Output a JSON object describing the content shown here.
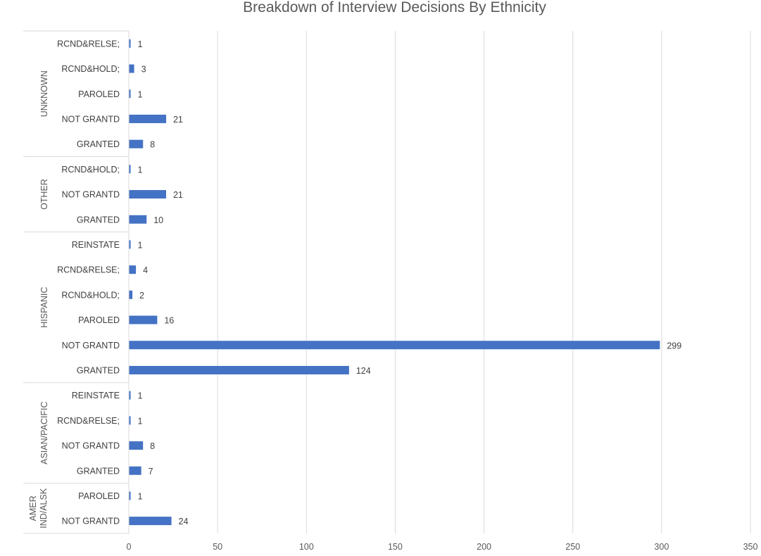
{
  "chart_data": {
    "type": "bar",
    "orientation": "horizontal",
    "title": "Breakdown of Interview Decisions By Ethnicity",
    "xlim": [
      0,
      350
    ],
    "x_ticks": [
      0,
      50,
      100,
      150,
      200,
      250,
      300,
      350
    ],
    "grid": "vertical",
    "bar_color": "#4472C4",
    "groups": [
      {
        "name": "UNKNOWN",
        "items": [
          {
            "label": "RCND&RELSE;",
            "value": 1
          },
          {
            "label": "RCND&HOLD;",
            "value": 3
          },
          {
            "label": "PAROLED",
            "value": 1
          },
          {
            "label": "NOT GRANTD",
            "value": 21
          },
          {
            "label": "GRANTED",
            "value": 8
          }
        ]
      },
      {
        "name": "OTHER",
        "items": [
          {
            "label": "RCND&HOLD;",
            "value": 1
          },
          {
            "label": "NOT GRANTD",
            "value": 21
          },
          {
            "label": "GRANTED",
            "value": 10
          }
        ]
      },
      {
        "name": "HISPANIC",
        "items": [
          {
            "label": "REINSTATE",
            "value": 1
          },
          {
            "label": "RCND&RELSE;",
            "value": 4
          },
          {
            "label": "RCND&HOLD;",
            "value": 2
          },
          {
            "label": "PAROLED",
            "value": 16
          },
          {
            "label": "NOT GRANTD",
            "value": 299
          },
          {
            "label": "GRANTED",
            "value": 124
          }
        ]
      },
      {
        "name": "ASIAN/PACIFIC",
        "items": [
          {
            "label": "REINSTATE",
            "value": 1
          },
          {
            "label": "RCND&RELSE;",
            "value": 1
          },
          {
            "label": "NOT GRANTD",
            "value": 8
          },
          {
            "label": "GRANTED",
            "value": 7
          }
        ]
      },
      {
        "name": "AMER IND/ALSK",
        "lines": [
          "AMER",
          "IND/ALSK"
        ],
        "items": [
          {
            "label": "PAROLED",
            "value": 1
          },
          {
            "label": "NOT GRANTD",
            "value": 24
          }
        ]
      }
    ]
  }
}
